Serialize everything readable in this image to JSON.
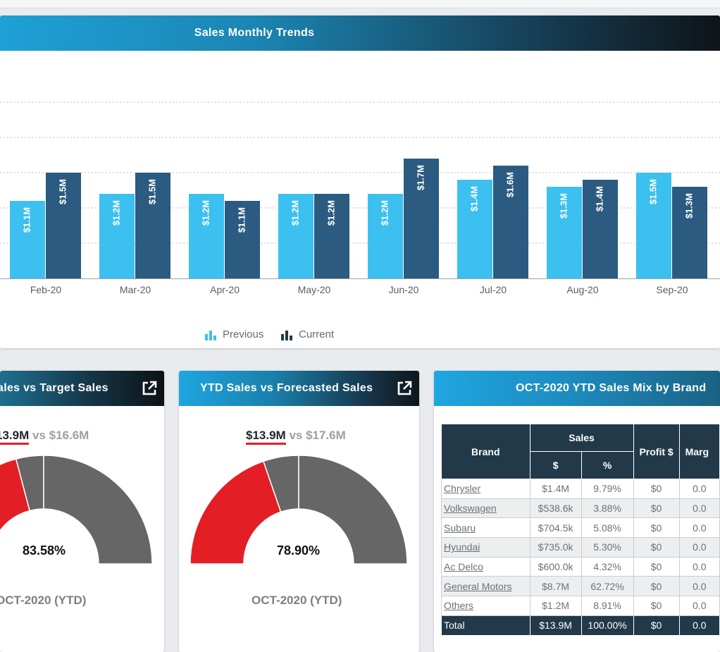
{
  "colors": {
    "previous": "#3cc0ef",
    "current": "#2b5b80",
    "gauge_achieved": "#e31e24",
    "gauge_remaining": "#666666",
    "header_dark": "#22394a"
  },
  "trend": {
    "title": "Sales Monthly Trends",
    "legend": {
      "previous": "Previous",
      "current": "Current"
    },
    "chart_data": {
      "type": "bar",
      "categories": [
        "Feb-20",
        "Mar-20",
        "Apr-20",
        "May-20",
        "Jun-20",
        "Jul-20",
        "Aug-20",
        "Sep-20"
      ],
      "series": [
        {
          "name": "Previous",
          "values": [
            1.1,
            1.2,
            1.2,
            1.2,
            1.2,
            1.4,
            1.3,
            1.5
          ],
          "labels": [
            "$1.1M",
            "$1.2M",
            "$1.2M",
            "$1.2M",
            "$1.2M",
            "$1.4M",
            "$1.3M",
            "$1.5M"
          ]
        },
        {
          "name": "Current",
          "values": [
            1.5,
            1.5,
            1.1,
            1.2,
            1.7,
            1.6,
            1.4,
            1.3
          ],
          "labels": [
            "$1.5M",
            "$1.5M",
            "$1.1M",
            "$1.2M",
            "$1.7M",
            "$1.6M",
            "$1.4M",
            "$1.3M"
          ]
        }
      ],
      "grid": true,
      "legend_position": "bottom-center"
    }
  },
  "gauge1": {
    "title": "ales vs Target Sales",
    "current": "13.9M",
    "vs": "vs $16.6M",
    "percent": "83.58%",
    "percent_value": 83.58,
    "period": "OCT-2020 (YTD)"
  },
  "gauge2": {
    "title": "YTD Sales vs Forecasted Sales",
    "current": "$13.9M",
    "vs": "vs $17.6M",
    "percent": "78.90%",
    "percent_value": 78.9,
    "period": "OCT-2020 (YTD)"
  },
  "mix": {
    "title": "OCT-2020 YTD Sales Mix by Brand",
    "headers": {
      "brand": "Brand",
      "sales": "Sales",
      "dollar": "$",
      "percent": "%",
      "profit": "Profit $",
      "margin": "Marg"
    },
    "rows": [
      {
        "brand": "Chrysler",
        "sales": "$1.4M",
        "pct": "9.79%",
        "profit": "$0",
        "margin": "0.0"
      },
      {
        "brand": "Volkswagen",
        "sales": "$538.6k",
        "pct": "3.88%",
        "profit": "$0",
        "margin": "0.0"
      },
      {
        "brand": "Subaru",
        "sales": "$704.5k",
        "pct": "5.08%",
        "profit": "$0",
        "margin": "0.0"
      },
      {
        "brand": "Hyundai",
        "sales": "$735.0k",
        "pct": "5.30%",
        "profit": "$0",
        "margin": "0.0"
      },
      {
        "brand": "Ac Delco",
        "sales": "$600.0k",
        "pct": "4.32%",
        "profit": "$0",
        "margin": "0.0"
      },
      {
        "brand": "General Motors",
        "sales": "$8.7M",
        "pct": "62.72%",
        "profit": "$0",
        "margin": "0.0"
      },
      {
        "brand": "Others",
        "sales": "$1.2M",
        "pct": "8.91%",
        "profit": "$0",
        "margin": "0.0"
      }
    ],
    "total": {
      "brand": "Total",
      "sales": "$13.9M",
      "pct": "100.00%",
      "profit": "$0",
      "margin": "0.0"
    }
  }
}
